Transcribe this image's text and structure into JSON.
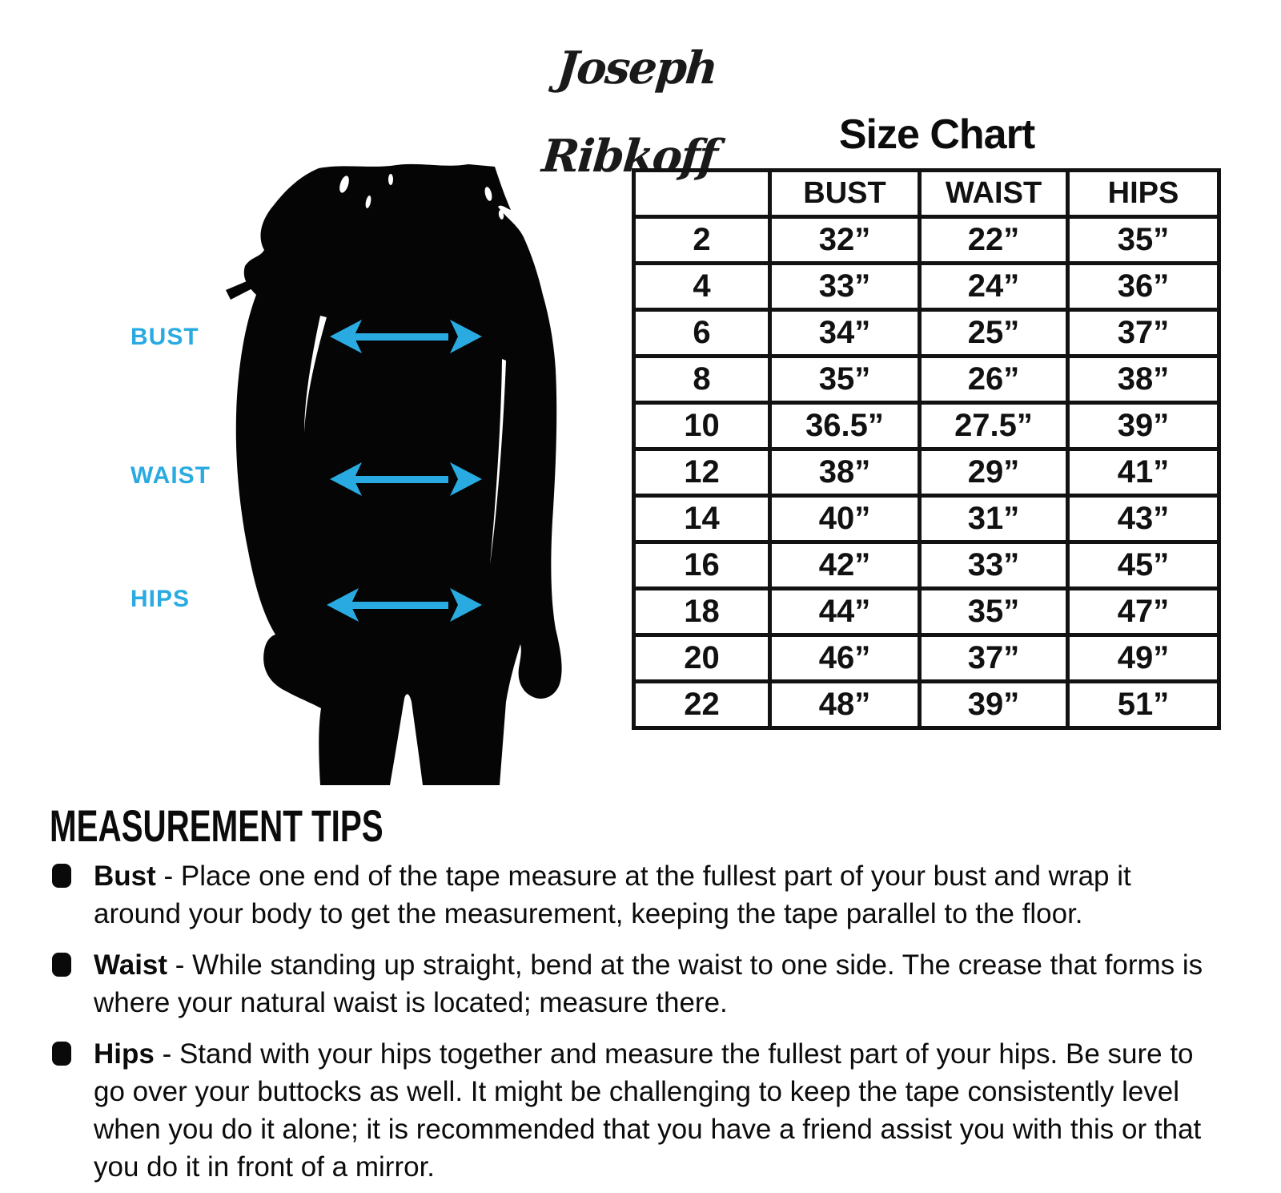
{
  "brand": {
    "logo_text": "Joseph Ribkoff"
  },
  "colors": {
    "accent_blue": "#29ABE2",
    "ink_black": "#0d0d0d"
  },
  "figure": {
    "silhouette_icon": "woman-back-silhouette",
    "labels": [
      {
        "id": "bust",
        "text": "BUST",
        "icon": "double-headed-arrow"
      },
      {
        "id": "waist",
        "text": "WAIST",
        "icon": "double-headed-arrow"
      },
      {
        "id": "hips",
        "text": "HIPS",
        "icon": "double-headed-arrow"
      }
    ]
  },
  "size_chart": {
    "title": "Size Chart",
    "columns": [
      "",
      "BUST",
      "WAIST",
      "HIPS"
    ],
    "rows": [
      [
        "2",
        "32”",
        "22”",
        "35”"
      ],
      [
        "4",
        "33”",
        "24”",
        "36”"
      ],
      [
        "6",
        "34”",
        "25”",
        "37”"
      ],
      [
        "8",
        "35”",
        "26”",
        "38”"
      ],
      [
        "10",
        "36.5”",
        "27.5”",
        "39”"
      ],
      [
        "12",
        "38”",
        "29”",
        "41”"
      ],
      [
        "14",
        "40”",
        "31”",
        "43”"
      ],
      [
        "16",
        "42”",
        "33”",
        "45”"
      ],
      [
        "18",
        "44”",
        "35”",
        "47”"
      ],
      [
        "20",
        "46”",
        "37”",
        "49”"
      ],
      [
        "22",
        "48”",
        "39”",
        "51”"
      ]
    ]
  },
  "tips": {
    "heading": "MEASUREMENT TIPS",
    "bullet_icon": "rounded-square-bullet",
    "items": [
      {
        "term": "Bust",
        "separator": " - ",
        "text": "Place one end of the tape measure at the fullest part of your bust and wrap it around your body to get the measurement, keeping the tape parallel to the floor."
      },
      {
        "term": "Waist",
        "separator": " - ",
        "text": "While standing up straight, bend at the waist to one side. The crease that forms is where your natural waist is located; measure there."
      },
      {
        "term": "Hips",
        "separator": " - ",
        "text": "Stand with your hips together and measure the fullest part of your hips. Be sure to go over your buttocks as well. It might be challenging to keep the tape consistently level when you do it alone; it is recommended that you have a friend assist you with this or that you do it in front of a mirror."
      }
    ]
  }
}
